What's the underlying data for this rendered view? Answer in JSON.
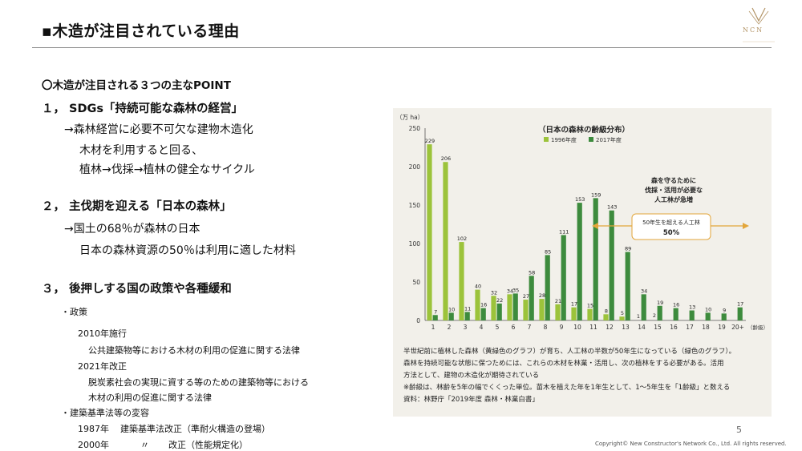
{
  "title": "▪木造が注目されている理由",
  "logo_text": "NCN",
  "points_heading": "〇木造が注目される３つの主なPOINT",
  "point1": {
    "heading": "１，  SDGs「持続可能な森林の経営」",
    "lines": [
      "→森林経営に必要不可欠な建物木造化",
      "木材を利用すると回る、",
      "植林→伐採→植林の健全なサイクル"
    ]
  },
  "point2": {
    "heading": "２，  主伐期を迎える「日本の森林」",
    "lines": [
      "→国土の68％が森林の日本",
      "日本の森林資源の50％は利用に適した材料"
    ]
  },
  "point3": {
    "heading": "３，  後押しする国の政策や各種緩和",
    "policy_label": "・政策",
    "policy_items": [
      "2010年施行",
      "公共建築物等における木材の利用の促進に関する法律",
      "2021年改正",
      "脱炭素社会の実現に資する等のための建築物等における",
      "木材の利用の促進に関する法律"
    ],
    "law_label": "・建築基準法等の変容",
    "law_items": [
      {
        "year": "1987年",
        "mark": "",
        "text": "建築基準法改正（準耐火構造の登場）"
      },
      {
        "year": "2000年",
        "mark": "〃",
        "text": "改正（性能規定化）"
      }
    ]
  },
  "chart_data": {
    "type": "bar",
    "title": "（日本の森林の齢級分布）",
    "yunit": "（万 ha）",
    "xunit": "（齢級）",
    "ylim": [
      0,
      250
    ],
    "yticks": [
      0,
      50,
      100,
      150,
      200,
      250
    ],
    "categories": [
      "1",
      "2",
      "3",
      "4",
      "5",
      "6",
      "7",
      "8",
      "9",
      "10",
      "11",
      "12",
      "13",
      "14",
      "15",
      "16",
      "17",
      "18",
      "19",
      "20+"
    ],
    "series": [
      {
        "name": "1996年度",
        "color": "#9cc33b",
        "values": [
          229,
          206,
          102,
          40,
          32,
          34,
          27,
          28,
          21,
          17,
          15,
          8,
          5,
          null,
          null,
          null,
          null,
          null,
          null,
          null
        ]
      },
      {
        "name": "2017年度",
        "color": "#3d8b3d",
        "values": [
          7,
          10,
          11,
          16,
          22,
          35,
          58,
          85,
          111,
          153,
          159,
          143,
          89,
          34,
          19,
          16,
          13,
          10,
          9,
          17
        ]
      }
    ],
    "annotation_top": [
      "森を守るために",
      "伐採・活用が必要な",
      "人工林が急増"
    ],
    "annotation_box": [
      "50年生を超える人工林",
      "50%"
    ],
    "annotation_bottom_value": "1",
    "annotation_bottom_value2": "2"
  },
  "caption_lines": [
    "半世紀前に植林した森林（黄緑色のグラフ）が育ち、人工林の半数が50年生になっている（緑色のグラフ）。",
    "森林を持続可能な状態に保つためには、これらの木材を林業・活用し、次の植林をする必要がある。活用",
    "方法として、建物の木造化が期待されている",
    "※齢級は、林齢を5年の幅でくくった単位。苗木を植えた年を1年生として、1〜5年生を「1齢級」と数える",
    "資料：林野庁「2019年度 森林・林業白書」"
  ],
  "page_number": "5",
  "copyright": "Copyright© New Constructor's Network Co., Ltd. All rights reserved."
}
